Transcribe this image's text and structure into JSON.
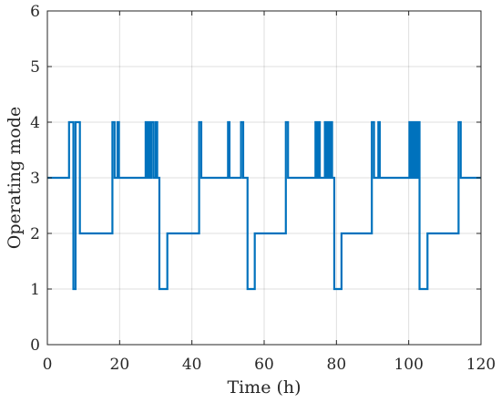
{
  "chart_data": {
    "type": "line",
    "title": "",
    "xlabel": "Time (h)",
    "ylabel": "Operating mode",
    "xlim": [
      0,
      120
    ],
    "ylim": [
      0,
      6
    ],
    "xticks": [
      0,
      20,
      40,
      60,
      80,
      100,
      120
    ],
    "yticks": [
      0,
      1,
      2,
      3,
      4,
      5,
      6
    ],
    "grid": true,
    "line_color": "#0072BD",
    "series": [
      {
        "step": "post",
        "x": [
          0,
          6.0,
          7.2,
          7.8,
          9.0,
          18.0,
          18.6,
          19.4,
          19.8,
          27.2,
          27.6,
          28.0,
          28.4,
          28.8,
          29.4,
          30.0,
          30.4,
          31.0,
          33.2,
          42.0,
          42.6,
          50.0,
          50.4,
          53.6,
          54.2,
          55.4,
          57.4,
          66.0,
          66.6,
          74.2,
          74.6,
          75.0,
          75.4,
          76.8,
          77.2,
          77.6,
          78.0,
          78.4,
          78.8,
          79.4,
          81.4,
          89.8,
          90.4,
          91.6,
          92.0,
          100.2,
          100.6,
          101.0,
          101.4,
          101.8,
          102.2,
          102.6,
          103.0,
          105.2,
          113.8,
          114.4,
          120
        ],
        "y": [
          3,
          4,
          1,
          4,
          2,
          4,
          3,
          4,
          3,
          4,
          3,
          4,
          3,
          4,
          3,
          4,
          3,
          1,
          2,
          4,
          3,
          4,
          3,
          4,
          3,
          1,
          2,
          4,
          3,
          4,
          3,
          4,
          3,
          4,
          3,
          4,
          3,
          4,
          3,
          1,
          2,
          4,
          3,
          4,
          3,
          4,
          3,
          4,
          3,
          4,
          3,
          4,
          1,
          2,
          4,
          3,
          3
        ]
      }
    ]
  }
}
